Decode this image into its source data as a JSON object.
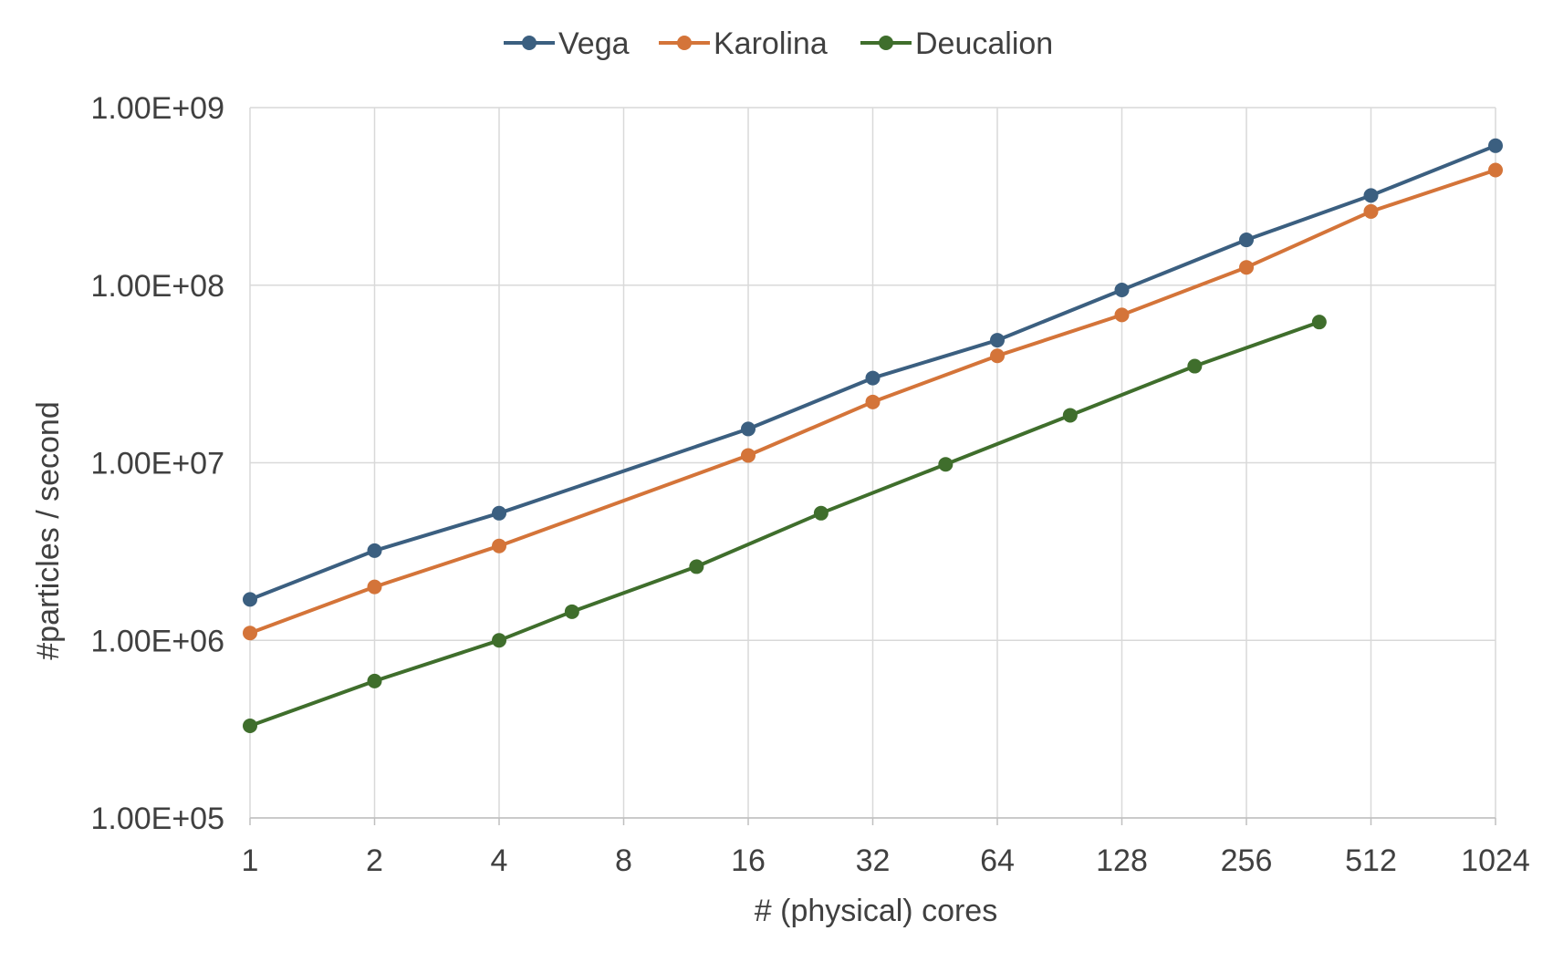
{
  "chart_data": {
    "type": "line",
    "xlabel": "# (physical) cores",
    "ylabel": "#particles / second",
    "x_scale": "log2",
    "y_scale": "log10",
    "xlim": [
      1,
      1024
    ],
    "ylim": [
      100000,
      1000000000
    ],
    "x_ticks": [
      1,
      2,
      4,
      8,
      16,
      32,
      64,
      128,
      256,
      512,
      1024
    ],
    "x_tick_labels": [
      "1",
      "2",
      "4",
      "8",
      "16",
      "32",
      "64",
      "128",
      "256",
      "512",
      "1024"
    ],
    "y_ticks": [
      100000,
      1000000,
      10000000,
      100000000,
      1000000000
    ],
    "y_tick_labels": [
      "1.00E+05",
      "1.00E+06",
      "1.00E+07",
      "1.00E+08",
      "1.00E+09"
    ],
    "grid": true,
    "legend_position": "top",
    "series": [
      {
        "name": "Vega",
        "color": "#3b5f80",
        "x": [
          1,
          2,
          4,
          16,
          32,
          64,
          128,
          256,
          512,
          1024
        ],
        "y": [
          1700000,
          3200000,
          5200000,
          15500000,
          30000000,
          49000000,
          94000000,
          180000000,
          320000000,
          610000000
        ]
      },
      {
        "name": "Karolina",
        "color": "#d47439",
        "x": [
          1,
          2,
          4,
          16,
          32,
          64,
          128,
          256,
          512,
          1024
        ],
        "y": [
          1100000,
          2000000,
          3400000,
          11000000,
          22000000,
          40000000,
          68000000,
          126000000,
          260000000,
          445000000
        ]
      },
      {
        "name": "Deucalion",
        "color": "#3f6e2c",
        "x": [
          1,
          2,
          4,
          6,
          12,
          24,
          48,
          96,
          192,
          384
        ],
        "y": [
          330000,
          590000,
          1000000,
          1450000,
          2600000,
          5200000,
          9800000,
          18500000,
          35000000,
          62000000
        ]
      }
    ]
  }
}
